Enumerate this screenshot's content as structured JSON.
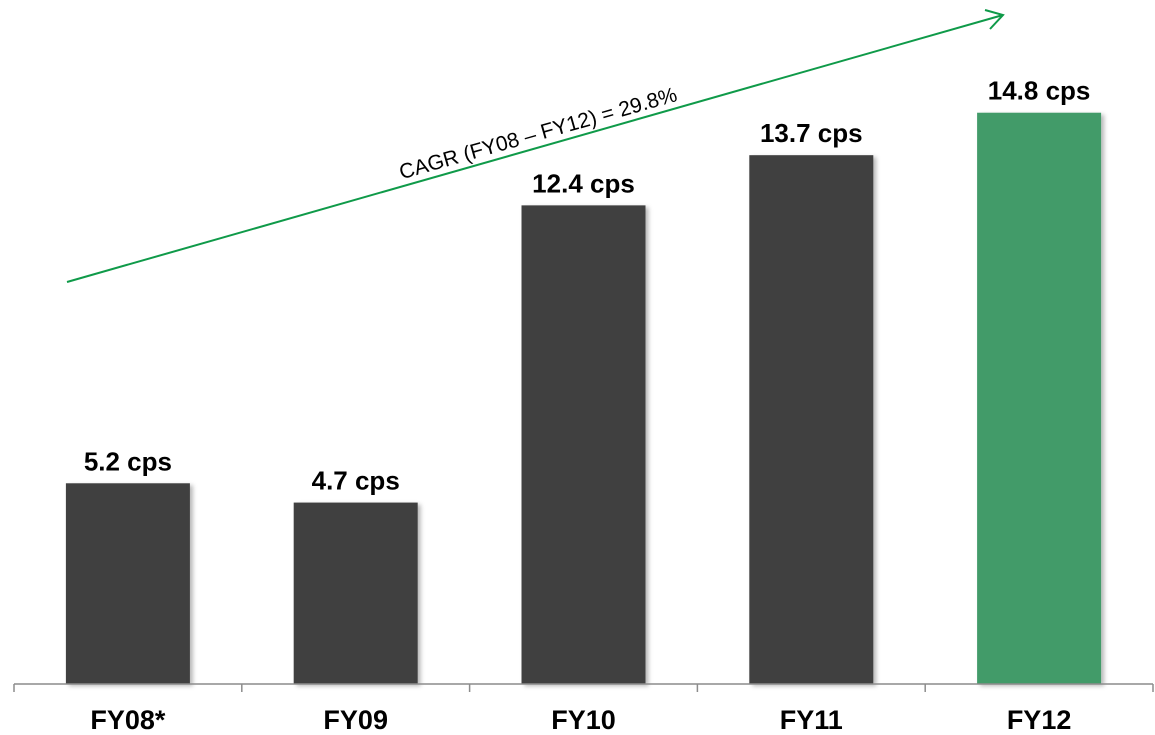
{
  "chart_data": {
    "type": "bar",
    "categories": [
      "FY08*",
      "FY09",
      "FY10",
      "FY11",
      "FY12"
    ],
    "values": [
      5.2,
      4.7,
      12.4,
      13.7,
      14.8
    ],
    "data_labels": [
      "5.2 cps",
      "4.7 cps",
      "12.4 cps",
      "13.7 cps",
      "14.8 cps"
    ],
    "unit": "cps",
    "title": "",
    "xlabel": "",
    "ylabel": "",
    "ylim": [
      0,
      18.5
    ],
    "grid": false,
    "legend": "none",
    "annotation": {
      "text": "CAGR (FY08 – FY12) = 29.8%",
      "type": "arrow",
      "color": "#0f9a49"
    },
    "colors": {
      "default_bar": "#404040",
      "highlight_bar": "#439b69",
      "highlight_index": 4,
      "axis": "#8c8c8c"
    }
  }
}
